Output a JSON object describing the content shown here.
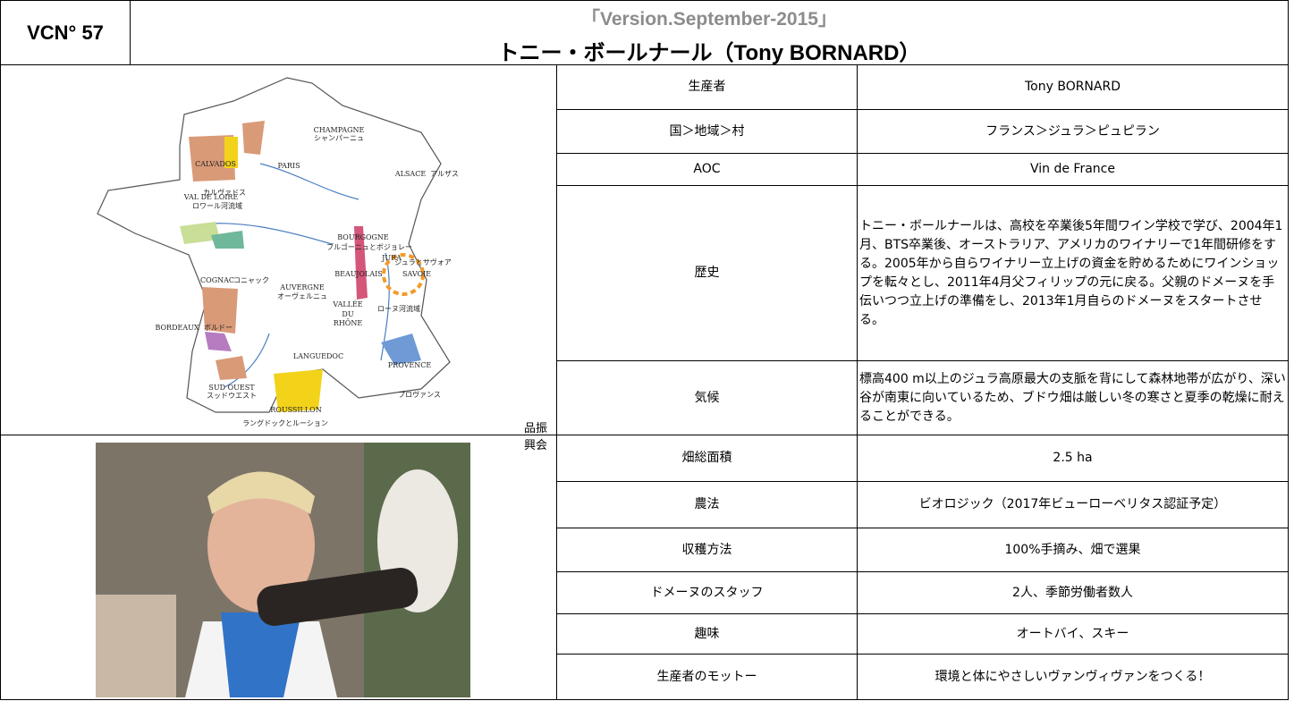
{
  "header": {
    "number": "VCN° 57",
    "version": "「Version.September-2015」",
    "title": "トニー・ボールナール（Tony BORNARD）"
  },
  "map": {
    "labels": [
      "CHAMPAGNE",
      "シャンパーニュ",
      "CALVADOS",
      "カルヴァドス",
      "PARIS",
      "ALSACE",
      "アルザス",
      "VAL DE LOIRE",
      "ロワール河流域",
      "BOURGOGNE",
      "ブルゴーニュとボジョレー",
      "JURA",
      "ジュラとサヴォア",
      "SAVOIE",
      "BEAUJOLAIS",
      "COGNAC",
      "コニャック",
      "AUVERGNE",
      "オーヴェルニュ",
      "VALLÉE",
      "DU",
      "RHÔNE",
      "ローヌ河流域",
      "BORDEAUX",
      "ボルドー",
      "LANGUEDOC",
      "PROVENCE",
      "プロヴァンス",
      "SUD OUEST",
      "スッドウエスト",
      "ROUSSILLON",
      "ラングドックとルーション"
    ],
    "credit": "品振興会"
  },
  "table": {
    "rows": [
      [
        "生産者",
        "Tony BORNARD"
      ],
      [
        "国＞地域＞村",
        "フランス＞ジュラ＞ピュピラン"
      ],
      [
        "AOC",
        "Vin de France"
      ],
      [
        "歴史",
        "トニー・ボールナールは、高校を卒業後5年間ワイン学校で学び、2004年1月、BTS卒業後、オーストラリア、アメリカのワイナリーで1年間研修をする。2005年から自らワイナリー立上げの資金を貯めるためにワインショップを転々とし、2011年4月父フィリップの元に戻る。父親のドメーヌを手伝いつつ立上げの準備をし、2013年1月自らのドメーヌをスタートさせる。"
      ],
      [
        "気候",
        "標高400 m以上のジュラ高原最大の支脈を背にして森林地帯が広がり、深い谷が南東に向いているため、ブドウ畑は厳しい冬の寒さと夏季の乾燥に耐えることができる。"
      ],
      [
        "畑総面積",
        "2.5 ha"
      ],
      [
        "農法",
        "ビオロジック（2017年ビューローベリタス認証予定）"
      ],
      [
        "収穫方法",
        "100%手摘み、畑で選果"
      ],
      [
        "ドメーヌのスタッフ",
        "2人、季節労働者数人"
      ],
      [
        "趣味",
        "オートバイ、スキー"
      ],
      [
        "生産者のモットー",
        "環境と体にやさしいヴァンヴィヴァンをつくる！"
      ]
    ]
  }
}
